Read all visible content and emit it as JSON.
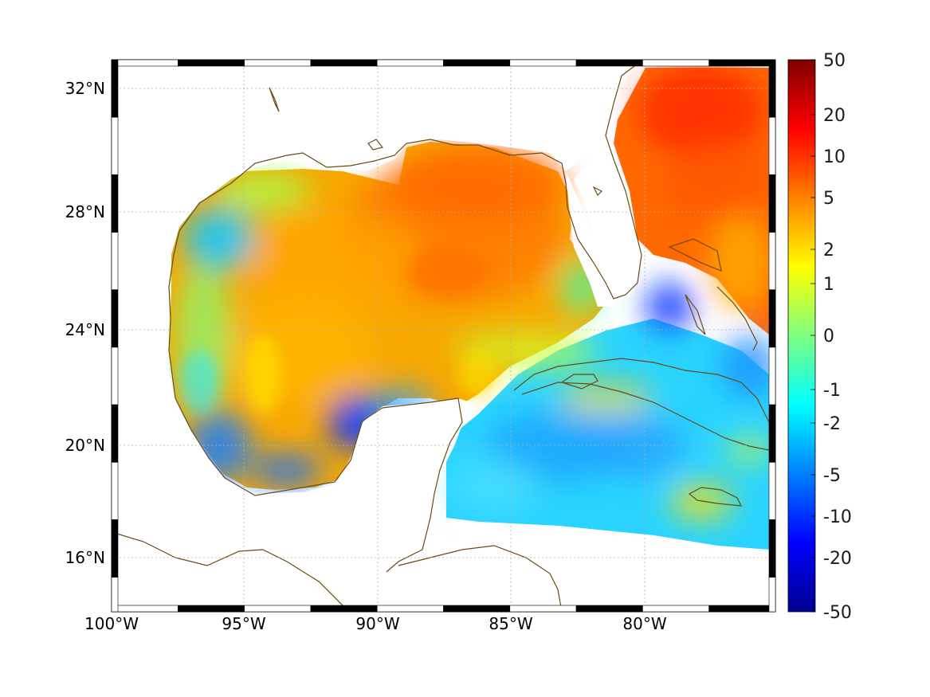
{
  "map": {
    "lat_ticks": [
      "32°N",
      "28°N",
      "24°N",
      "20°N",
      "16°N"
    ],
    "lon_ticks": [
      "100°W",
      "95°W",
      "90°W",
      "85°W",
      "80°W"
    ],
    "coastline_color": "#6b4a12",
    "grid_style": "dotted light gray",
    "frame": "alternating black/white border"
  },
  "colorbar": {
    "labels": [
      "50",
      "20",
      "10",
      "5",
      "2",
      "1",
      "0",
      "-1",
      "-2",
      "-5",
      "-10",
      "-20",
      "-50"
    ],
    "colormap": "jet"
  },
  "chart_data": {
    "type": "heatmap",
    "x_range": [
      "100°W",
      "75°W"
    ],
    "y_range": [
      "14°N",
      "33°N"
    ],
    "colorbar_ticks": [
      50,
      20,
      10,
      5,
      2,
      1,
      0,
      -1,
      -2,
      -5,
      -10,
      -20,
      -50
    ]
  }
}
